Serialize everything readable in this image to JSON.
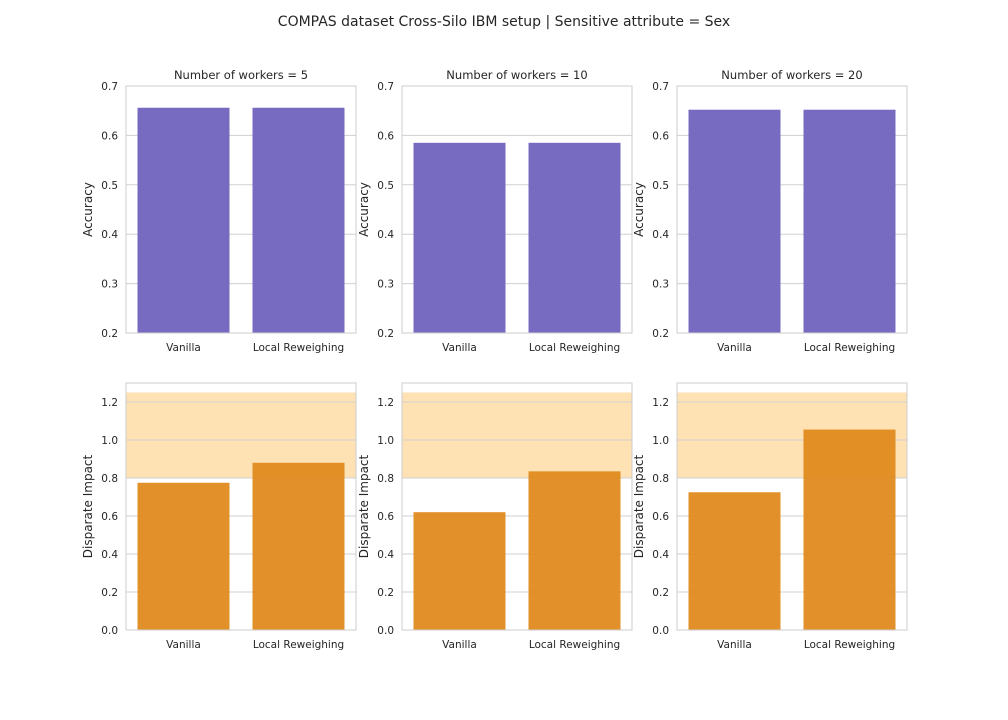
{
  "figure": {
    "title": "COMPAS dataset Cross-Silo IBM setup | Sensitive attribute = Sex"
  },
  "colors": {
    "accuracy_bar": "#776bc1",
    "disparate_bar": "#e08a1f",
    "fair_band": "#ffe2b3",
    "grid": "#d0d0d0",
    "spine": "#cccccc"
  },
  "chart_data": [
    {
      "type": "bar",
      "row": 0,
      "col": 0,
      "title": "Number of workers = 5",
      "ylabel": "Accuracy",
      "categories": [
        "Vanilla",
        "Local Reweighing"
      ],
      "values": [
        0.656,
        0.656
      ],
      "ylim": [
        0.2,
        0.7
      ],
      "yticks": [
        0.2,
        0.3,
        0.4,
        0.5,
        0.6,
        0.7
      ],
      "grid": true
    },
    {
      "type": "bar",
      "row": 0,
      "col": 1,
      "title": "Number of workers = 10",
      "ylabel": "Accuracy",
      "categories": [
        "Vanilla",
        "Local Reweighing"
      ],
      "values": [
        0.585,
        0.585
      ],
      "ylim": [
        0.2,
        0.7
      ],
      "yticks": [
        0.2,
        0.3,
        0.4,
        0.5,
        0.6,
        0.7
      ],
      "grid": true
    },
    {
      "type": "bar",
      "row": 0,
      "col": 2,
      "title": "Number of workers = 20",
      "ylabel": "Accuracy",
      "categories": [
        "Vanilla",
        "Local Reweighing"
      ],
      "values": [
        0.652,
        0.652
      ],
      "ylim": [
        0.2,
        0.7
      ],
      "yticks": [
        0.2,
        0.3,
        0.4,
        0.5,
        0.6,
        0.7
      ],
      "grid": true
    },
    {
      "type": "bar",
      "row": 1,
      "col": 0,
      "title": "",
      "ylabel": "Disparate Impact",
      "categories": [
        "Vanilla",
        "Local Reweighing"
      ],
      "values": [
        0.775,
        0.88
      ],
      "ylim": [
        0.0,
        1.3
      ],
      "yticks": [
        0.0,
        0.2,
        0.4,
        0.6,
        0.8,
        1.0,
        1.2
      ],
      "band": [
        0.8,
        1.25
      ],
      "grid": true
    },
    {
      "type": "bar",
      "row": 1,
      "col": 1,
      "title": "",
      "ylabel": "Disparate Impact",
      "categories": [
        "Vanilla",
        "Local Reweighing"
      ],
      "values": [
        0.62,
        0.835
      ],
      "ylim": [
        0.0,
        1.3
      ],
      "yticks": [
        0.0,
        0.2,
        0.4,
        0.6,
        0.8,
        1.0,
        1.2
      ],
      "band": [
        0.8,
        1.25
      ],
      "grid": true
    },
    {
      "type": "bar",
      "row": 1,
      "col": 2,
      "title": "",
      "ylabel": "Disparate Impact",
      "categories": [
        "Vanilla",
        "Local Reweighing"
      ],
      "values": [
        0.725,
        1.055
      ],
      "ylim": [
        0.0,
        1.3
      ],
      "yticks": [
        0.0,
        0.2,
        0.4,
        0.6,
        0.8,
        1.0,
        1.2
      ],
      "band": [
        0.8,
        1.25
      ],
      "grid": true
    }
  ]
}
